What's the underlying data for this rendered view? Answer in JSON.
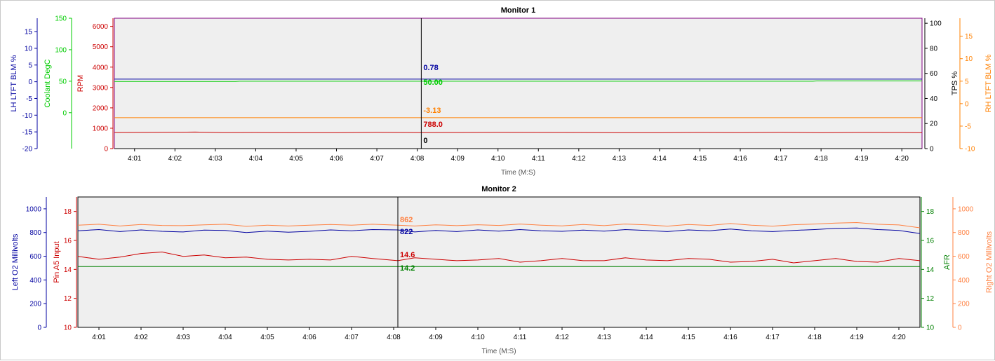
{
  "chart_data": [
    {
      "type": "line",
      "title": "Monitor 1",
      "xlabel": "Time (M:S)",
      "x_ticks": [
        "4:01",
        "4:02",
        "4:03",
        "4:04",
        "4:05",
        "4:06",
        "4:07",
        "4:08",
        "4:09",
        "4:10",
        "4:11",
        "4:12",
        "4:13",
        "4:14",
        "4:15",
        "4:16",
        "4:17",
        "4:18",
        "4:19",
        "4:20"
      ],
      "x_range": [
        "4:00.5",
        "4:20.5"
      ],
      "cursor": {
        "time": "4:08.1"
      },
      "grid": false,
      "plot_background": "#efefef",
      "frame_color": "#800080",
      "axes": [
        {
          "id": "lh",
          "label": "LH LTFT BLM %",
          "side": "left",
          "color": "#0000a0",
          "ylim": [
            -20,
            19
          ],
          "ticks": [
            "15",
            "10",
            "5",
            "0",
            "-5",
            "-10",
            "-15",
            "-20"
          ]
        },
        {
          "id": "coolant",
          "label": "Coolant DegC",
          "side": "left",
          "color": "#00cc00",
          "ylim": [
            -57,
            150
          ],
          "ticks": [
            "150",
            "100",
            "50",
            "0"
          ]
        },
        {
          "id": "rpm",
          "label": "RPM",
          "side": "left",
          "color": "#cc0000",
          "ylim": [
            0,
            6400
          ],
          "ticks": [
            "6000",
            "5000",
            "4000",
            "3000",
            "2000",
            "1000",
            "0"
          ]
        },
        {
          "id": "tps",
          "label": "TPS %",
          "side": "right",
          "color": "#000000",
          "ylim": [
            0,
            104
          ],
          "ticks": [
            "100",
            "80",
            "60",
            "40",
            "20",
            "0"
          ]
        },
        {
          "id": "rh",
          "label": "RH LTFT BLM %",
          "side": "right",
          "color": "#ff8000",
          "ylim": [
            -10,
            19
          ],
          "ticks": [
            "15",
            "10",
            "5",
            "0",
            "-5",
            "-10"
          ]
        }
      ],
      "series": [
        {
          "name": "LH LTFT BLM %",
          "axis": "lh",
          "color": "#0000a0",
          "cursor_value": "0.78",
          "x": [
            "4:00.5",
            "4:20.5"
          ],
          "y": [
            0.78,
            0.78
          ]
        },
        {
          "name": "Coolant DegC",
          "axis": "coolant",
          "color": "#00cc00",
          "cursor_value": "50.00",
          "x": [
            "4:00.5",
            "4:03.5",
            "4:03.6",
            "4:17.8",
            "4:17.9",
            "4:20.5"
          ],
          "y": [
            49.5,
            49.5,
            50,
            50,
            50.5,
            50.5
          ]
        },
        {
          "name": "RPM",
          "axis": "rpm",
          "color": "#cc0000",
          "cursor_value": "788.0",
          "x": [
            "4:00.5",
            "4:01.5",
            "4:02.5",
            "4:03.2",
            "4:04",
            "4:05",
            "4:06",
            "4:07",
            "4:08.1",
            "4:09",
            "4:10",
            "4:11",
            "4:12",
            "4:13",
            "4:14",
            "4:15",
            "4:16",
            "4:17",
            "4:18",
            "4:19",
            "4:20",
            "4:20.5"
          ],
          "y": [
            790,
            800,
            812,
            788,
            790,
            782,
            786,
            800,
            788,
            792,
            800,
            796,
            790,
            786,
            780,
            794,
            788,
            798,
            784,
            796,
            790,
            786
          ]
        },
        {
          "name": "TPS %",
          "axis": "tps",
          "color": "#000000",
          "cursor_value": "0",
          "x": [
            "4:00.5",
            "4:20.5"
          ],
          "y": [
            0,
            0
          ]
        },
        {
          "name": "RH LTFT BLM %",
          "axis": "rh",
          "color": "#ff8000",
          "cursor_value": "-3.13",
          "x": [
            "4:00.5",
            "4:20.5"
          ],
          "y": [
            -3.13,
            -3.13
          ]
        }
      ]
    },
    {
      "type": "line",
      "title": "Monitor 2",
      "xlabel": "Time (M:S)",
      "x_ticks": [
        "4:01",
        "4:02",
        "4:03",
        "4:04",
        "4:05",
        "4:06",
        "4:07",
        "4:08",
        "4:09",
        "4:10",
        "4:11",
        "4:12",
        "4:13",
        "4:14",
        "4:15",
        "4:16",
        "4:17",
        "4:18",
        "4:19",
        "4:20"
      ],
      "x_range": [
        "4:00.5",
        "4:20.5"
      ],
      "cursor": {
        "time": "4:08.1"
      },
      "grid": false,
      "plot_background": "#efefef",
      "frame_color": "#000000",
      "axes": [
        {
          "id": "lo2",
          "label": "Left O2 Millivolts",
          "side": "left",
          "color": "#0000a0",
          "ylim": [
            0,
            1100
          ],
          "ticks": [
            "1000",
            "800",
            "600",
            "400",
            "200",
            "0"
          ]
        },
        {
          "id": "pin",
          "label": "Pin A5 Input",
          "side": "left",
          "color": "#cc0000",
          "ylim": [
            10,
            19
          ],
          "ticks": [
            "18",
            "16",
            "14",
            "12",
            "10"
          ]
        },
        {
          "id": "afr",
          "label": "AFR",
          "side": "right",
          "color": "#008000",
          "ylim": [
            10,
            19
          ],
          "ticks": [
            "18",
            "16",
            "14",
            "12",
            "10"
          ]
        },
        {
          "id": "ro2",
          "label": "Right O2 Millivolts",
          "side": "right",
          "color": "#ff8040",
          "ylim": [
            0,
            1100
          ],
          "ticks": [
            "1000",
            "800",
            "600",
            "400",
            "200",
            "0"
          ]
        }
      ],
      "series": [
        {
          "name": "Left O2 Millivolts",
          "axis": "lo2",
          "color": "#0000a0",
          "cursor_value": "822",
          "x": [
            "4:00.5",
            "4:01",
            "4:01.5",
            "4:02",
            "4:02.5",
            "4:03",
            "4:03.5",
            "4:04",
            "4:04.5",
            "4:05",
            "4:05.5",
            "4:06",
            "4:06.5",
            "4:07",
            "4:07.5",
            "4:08.1",
            "4:08.5",
            "4:09",
            "4:09.5",
            "4:10",
            "4:10.5",
            "4:11",
            "4:11.5",
            "4:12",
            "4:12.5",
            "4:13",
            "4:13.5",
            "4:14",
            "4:14.5",
            "4:15",
            "4:15.5",
            "4:16",
            "4:16.5",
            "4:17",
            "4:17.5",
            "4:18",
            "4:18.5",
            "4:19",
            "4:19.5",
            "4:20",
            "4:20.5"
          ],
          "y": [
            815,
            825,
            808,
            822,
            810,
            805,
            820,
            818,
            800,
            812,
            803,
            810,
            822,
            815,
            825,
            822,
            805,
            818,
            808,
            822,
            812,
            825,
            815,
            810,
            820,
            812,
            825,
            818,
            808,
            822,
            815,
            830,
            815,
            808,
            818,
            825,
            835,
            838,
            825,
            818,
            792
          ]
        },
        {
          "name": "Pin A5 Input",
          "axis": "pin",
          "color": "#cc0000",
          "cursor_value": "14.6",
          "x": [
            "4:00.5",
            "4:01",
            "4:01.5",
            "4:02",
            "4:02.5",
            "4:03",
            "4:03.5",
            "4:04",
            "4:04.5",
            "4:05",
            "4:05.5",
            "4:06",
            "4:06.5",
            "4:07",
            "4:07.5",
            "4:08.1",
            "4:08.5",
            "4:09",
            "4:09.5",
            "4:10",
            "4:10.5",
            "4:11",
            "4:11.5",
            "4:12",
            "4:12.5",
            "4:13",
            "4:13.5",
            "4:14",
            "4:14.5",
            "4:15",
            "4:15.5",
            "4:16",
            "4:16.5",
            "4:17",
            "4:17.5",
            "4:18",
            "4:18.5",
            "4:19",
            "4:19.5",
            "4:20",
            "4:20.5"
          ],
          "y": [
            14.9,
            14.7,
            14.85,
            15.1,
            15.2,
            14.9,
            15.0,
            14.8,
            14.85,
            14.7,
            14.65,
            14.7,
            14.65,
            14.9,
            14.75,
            14.6,
            14.8,
            14.7,
            14.6,
            14.65,
            14.75,
            14.5,
            14.6,
            14.75,
            14.6,
            14.6,
            14.8,
            14.65,
            14.6,
            14.75,
            14.7,
            14.5,
            14.55,
            14.7,
            14.45,
            14.6,
            14.75,
            14.55,
            14.5,
            14.75,
            14.6
          ]
        },
        {
          "name": "AFR",
          "axis": "afr",
          "color": "#008000",
          "cursor_value": "14.2",
          "x": [
            "4:00.5",
            "4:20.5"
          ],
          "y": [
            14.2,
            14.2
          ]
        },
        {
          "name": "Right O2 Millivolts",
          "axis": "ro2",
          "color": "#ff8040",
          "cursor_value": "862",
          "x": [
            "4:00.5",
            "4:01",
            "4:01.5",
            "4:02",
            "4:02.5",
            "4:03",
            "4:03.5",
            "4:04",
            "4:04.5",
            "4:05",
            "4:05.5",
            "4:06",
            "4:06.5",
            "4:07",
            "4:07.5",
            "4:08.1",
            "4:08.5",
            "4:09",
            "4:09.5",
            "4:10",
            "4:10.5",
            "4:11",
            "4:11.5",
            "4:12",
            "4:12.5",
            "4:13",
            "4:13.5",
            "4:14",
            "4:14.5",
            "4:15",
            "4:15.5",
            "4:16",
            "4:16.5",
            "4:17",
            "4:17.5",
            "4:18",
            "4:18.5",
            "4:19",
            "4:19.5",
            "4:20",
            "4:20.5"
          ],
          "y": [
            862,
            870,
            855,
            868,
            860,
            858,
            865,
            870,
            852,
            862,
            855,
            862,
            868,
            862,
            870,
            862,
            855,
            865,
            858,
            866,
            860,
            872,
            862,
            856,
            868,
            858,
            872,
            865,
            854,
            868,
            860,
            876,
            862,
            854,
            866,
            872,
            880,
            884,
            870,
            864,
            840
          ]
        }
      ]
    }
  ]
}
